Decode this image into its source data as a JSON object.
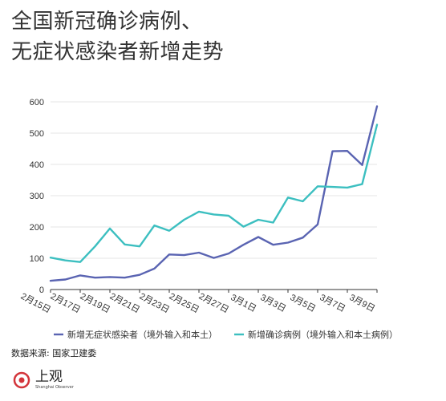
{
  "title": {
    "line1": "全国新冠确诊病例、",
    "line2": "无症状感染者新增走势"
  },
  "source": "数据来源: 国家卫建委",
  "logo": {
    "main": "上观",
    "sub": "Shanghai Observer",
    "icon": "red-circle-logo-icon"
  },
  "colors": {
    "asymptomatic": "#5a64b2",
    "confirmed": "#3cbfc0",
    "grid": "#e6e6e6",
    "axis": "#333333"
  },
  "chart_data": {
    "type": "line",
    "x": [
      "2月15日",
      "2月16日",
      "2月17日",
      "2月18日",
      "2月19日",
      "2月20日",
      "2月21日",
      "2月22日",
      "2月23日",
      "2月24日",
      "2月25日",
      "2月26日",
      "2月27日",
      "2月28日",
      "3月1日",
      "3月2日",
      "3月3日",
      "3月4日",
      "3月5日",
      "3月6日",
      "3月7日",
      "3月8日",
      "3月9日"
    ],
    "xticks": [
      "2月15日",
      "2月17日",
      "2月19日",
      "2月21日",
      "2月23日",
      "2月25日",
      "2月27日",
      "3月1日",
      "3月3日",
      "3月5日",
      "3月7日",
      "3月9日"
    ],
    "yticks": [
      0,
      100,
      200,
      300,
      400,
      500,
      600
    ],
    "ylim": [
      0,
      600
    ],
    "grid": true,
    "legend_position": "bottom",
    "series": [
      {
        "name": "新增无症状感染者（境外输入和本土）",
        "color": "#5a64b2",
        "values": [
          28,
          32,
          45,
          38,
          40,
          38,
          47,
          67,
          112,
          110,
          118,
          101,
          115,
          143,
          168,
          143,
          150,
          166,
          208,
          442,
          443,
          398,
          586
        ]
      },
      {
        "name": "新增确诊病例（境外输入和本土病例）",
        "color": "#3cbfc0",
        "values": [
          102,
          93,
          88,
          138,
          195,
          144,
          138,
          205,
          188,
          223,
          249,
          240,
          236,
          201,
          223,
          214,
          294,
          282,
          330,
          328,
          326,
          337,
          527
        ]
      }
    ]
  }
}
